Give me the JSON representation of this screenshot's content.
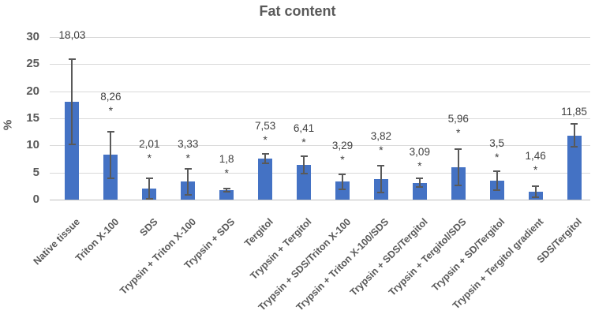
{
  "chart_data": {
    "type": "bar",
    "title": "Fat content",
    "ylabel": "%",
    "xlabel": "",
    "ylim": [
      0,
      30
    ],
    "yticks": [
      0,
      5,
      10,
      15,
      20,
      25,
      30
    ],
    "grid": true,
    "legend": false,
    "decimal_separator": ",",
    "categories": [
      "Native tissue",
      "Triton X-100",
      "SDS",
      "Trypsin + Triton X-100",
      "Trypsin + SDS",
      "Tergitol",
      "Trypsin + Tergitol",
      "Trypsin + SDS/Triton X-100",
      "Trypsin + Triton X-100/SDS",
      "Trypsin + SDS/Tergitol",
      "Trypsin + Tergitol/SDS",
      "Trypsin + SD/Tergitol",
      "Trypsin + Tergitol gradient",
      "SDS/Tergitol"
    ],
    "values": [
      18.03,
      8.26,
      2.01,
      3.33,
      1.8,
      7.53,
      6.41,
      3.29,
      3.82,
      3.09,
      5.96,
      3.5,
      1.46,
      11.85
    ],
    "value_labels": [
      "18,03",
      "8,26",
      "2,01",
      "3,33",
      "1,8",
      "7,53",
      "6,41",
      "3,29",
      "3,82",
      "3,09",
      "5,96",
      "3,5",
      "1,46",
      "11,85"
    ],
    "errors": [
      7.9,
      4.3,
      1.9,
      2.4,
      0.3,
      0.85,
      1.6,
      1.4,
      2.5,
      0.8,
      3.4,
      1.7,
      1.0,
      2.1
    ],
    "significance": [
      false,
      true,
      true,
      true,
      true,
      true,
      true,
      true,
      true,
      true,
      true,
      true,
      true,
      false
    ],
    "significance_marker": "*",
    "colors": {
      "bar": "#4472C4",
      "error_bar": "#595959",
      "gridline": "#D9D9D9",
      "axis_line": "#BFBFBF",
      "tick_text": "#595959",
      "label_text": "#404040"
    },
    "layout_hints": {
      "x_rotation_deg": 45,
      "value_label_dy": [
        -15,
        -11,
        -10,
        2,
        -4,
        -2,
        -2,
        -3,
        -4,
        0,
        -5,
        -2,
        -5,
        0
      ]
    }
  }
}
